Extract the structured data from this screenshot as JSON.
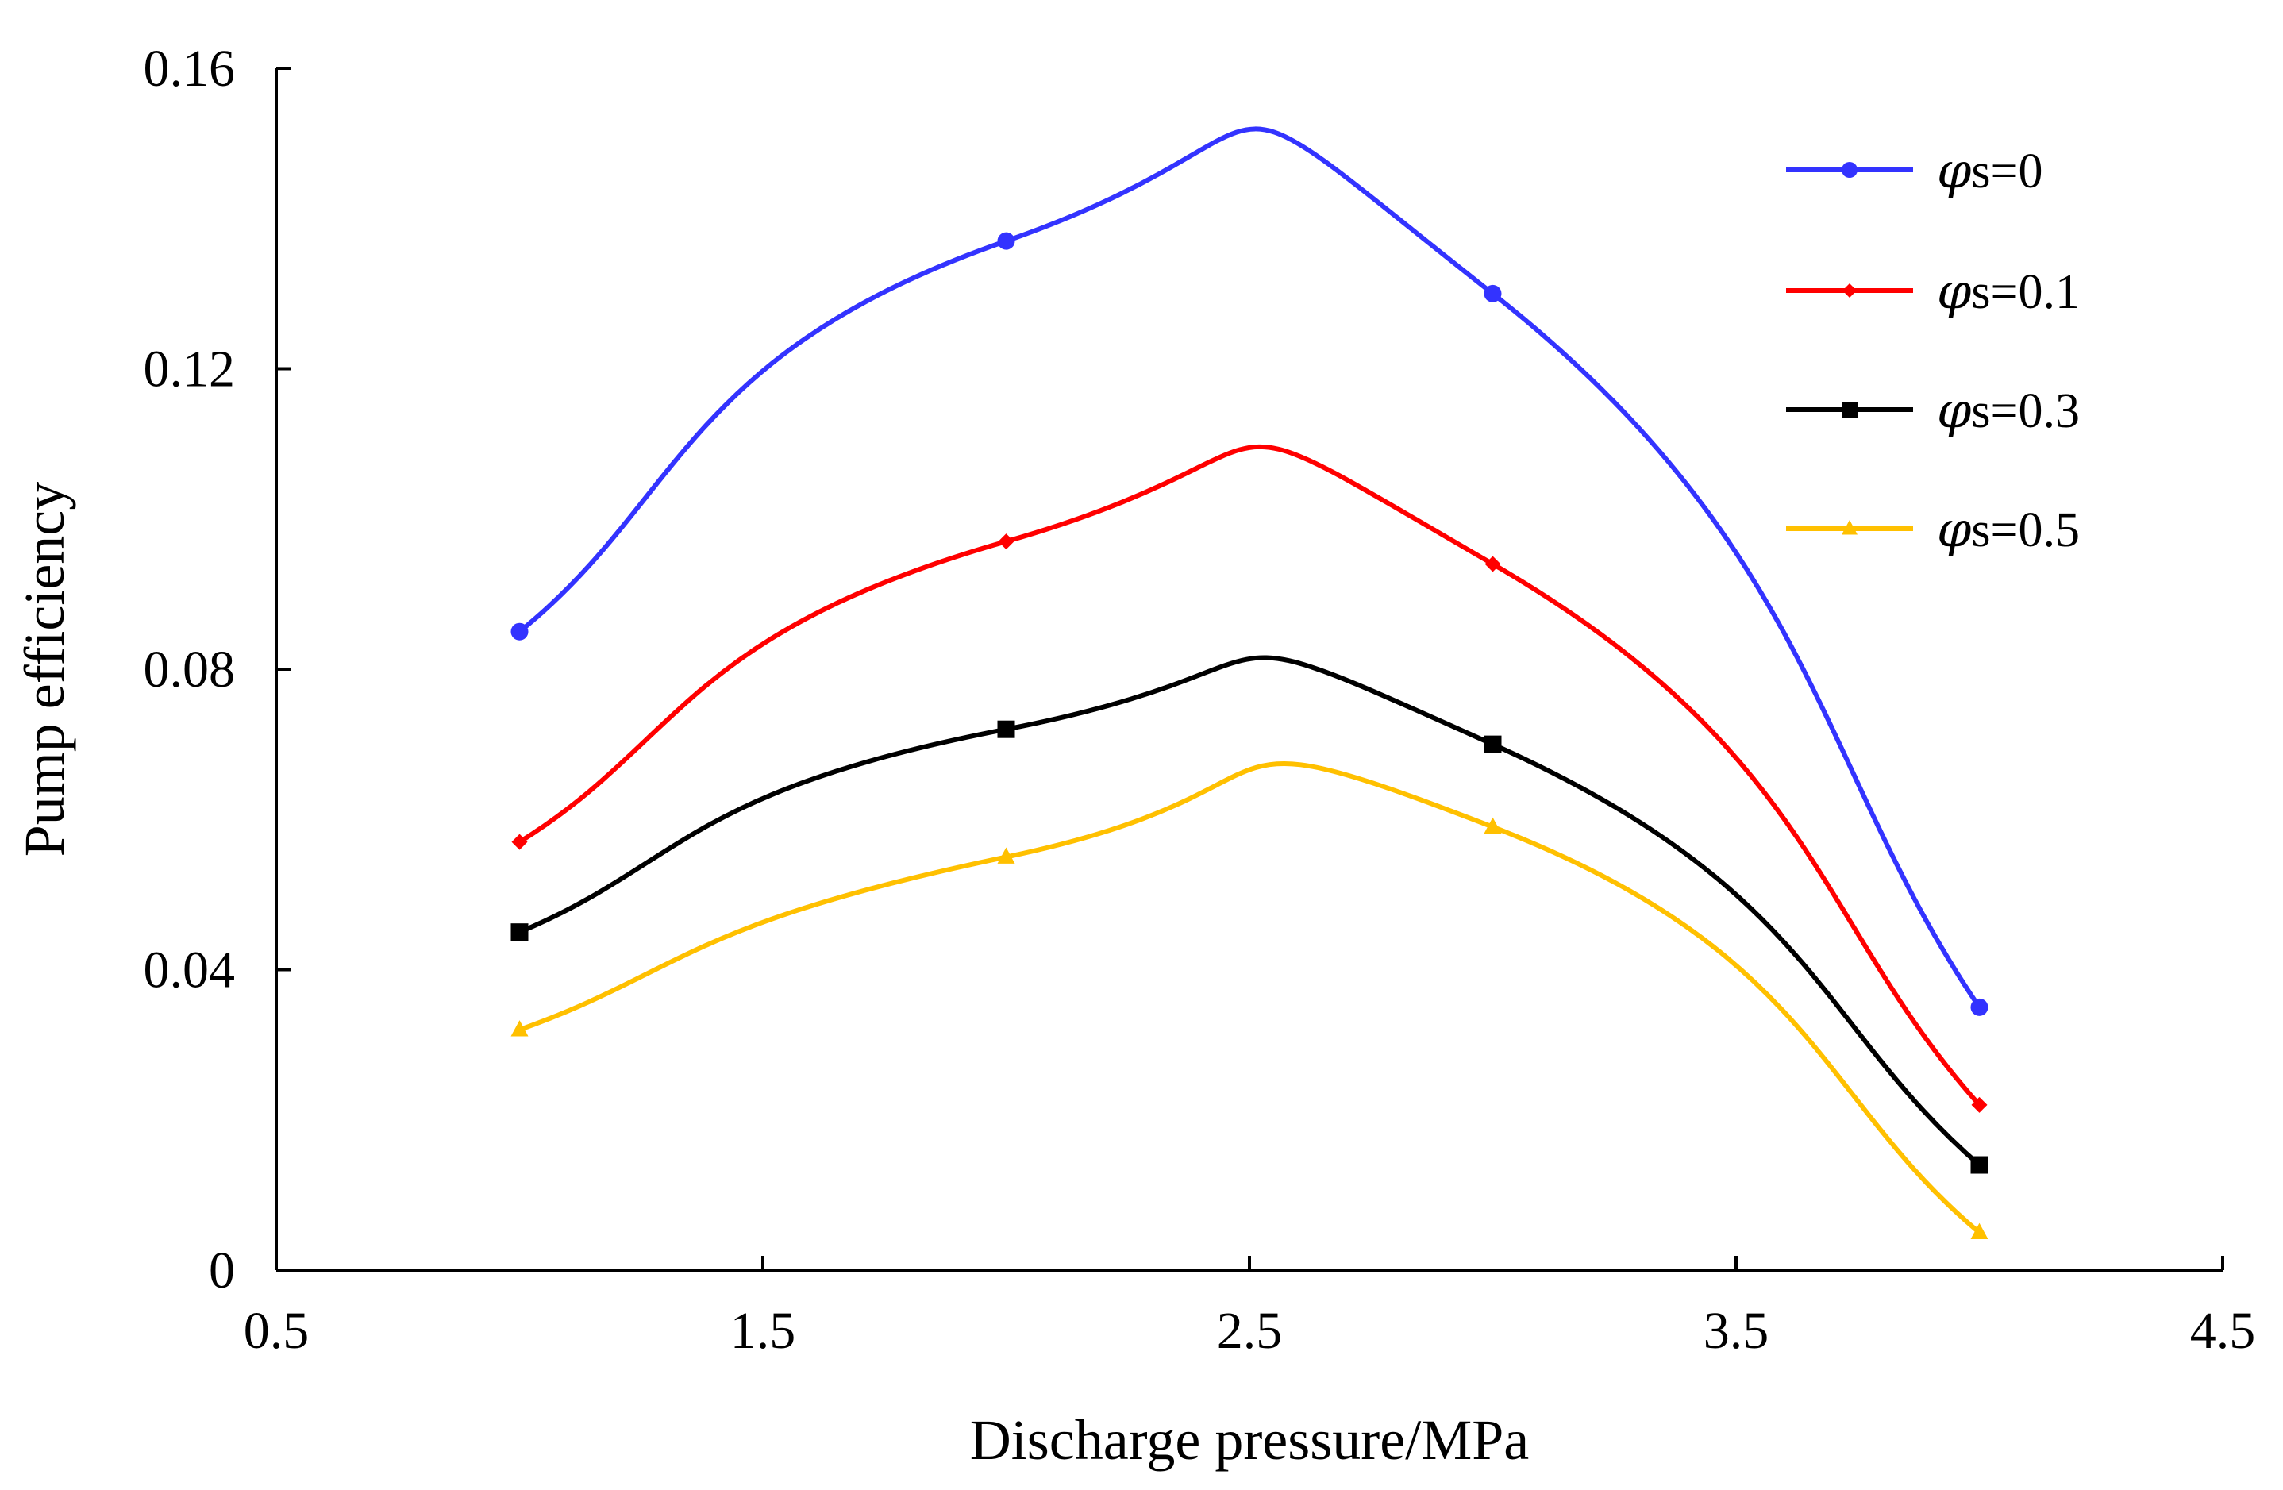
{
  "chart_data": {
    "type": "line",
    "smooth": true,
    "title": "",
    "xlabel": "Discharge pressure/MPa",
    "ylabel": "Pump efficiency",
    "xlim": [
      0.5,
      4.5
    ],
    "ylim": [
      0,
      0.16
    ],
    "xticks": [
      0.5,
      1.5,
      2.5,
      3.5,
      4.5
    ],
    "xtick_labels": [
      "0.5",
      "1.5",
      "2.5",
      "3.5",
      "4.5"
    ],
    "yticks": [
      0,
      0.04,
      0.08,
      0.12,
      0.16
    ],
    "ytick_labels": [
      "0",
      "0.04",
      "0.08",
      "0.12",
      "0.16"
    ],
    "grid": false,
    "legend_position": "top-right",
    "x": [
      1,
      2,
      3,
      4
    ],
    "series": [
      {
        "name": "φs=0",
        "legend_symbol": "φ",
        "legend_suffix": "s=0",
        "color": "#3333ff",
        "marker": "circle",
        "values": [
          0.085,
          0.137,
          0.13,
          0.035
        ]
      },
      {
        "name": "φs=0.1",
        "legend_symbol": "φ",
        "legend_suffix": "s=0.1",
        "color": "#ff0000",
        "marker": "diamond",
        "values": [
          0.057,
          0.097,
          0.094,
          0.022
        ]
      },
      {
        "name": "φs=0.3",
        "legend_symbol": "φ",
        "legend_suffix": "s=0.3",
        "color": "#000000",
        "marker": "square",
        "values": [
          0.045,
          0.072,
          0.07,
          0.014
        ]
      },
      {
        "name": "φs=0.5",
        "legend_symbol": "φ",
        "legend_suffix": "s=0.5",
        "color": "#ffc000",
        "marker": "triangle",
        "values": [
          0.032,
          0.055,
          0.059,
          0.005
        ]
      }
    ]
  }
}
